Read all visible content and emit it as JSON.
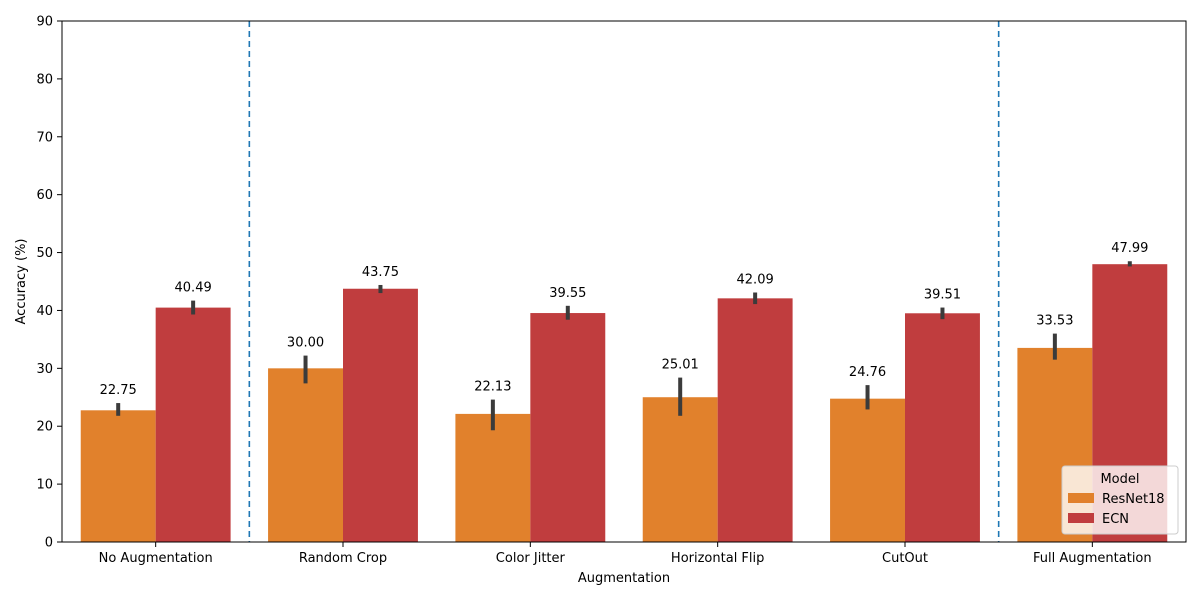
{
  "chart_data": {
    "type": "bar",
    "xlabel": "Augmentation",
    "ylabel": "Accuracy (%)",
    "ylim": [
      0,
      90
    ],
    "yticks": [
      0,
      10,
      20,
      30,
      40,
      50,
      60,
      70,
      80,
      90
    ],
    "categories": [
      "No Augmentation",
      "Random Crop",
      "Color Jitter",
      "Horizontal Flip",
      "CutOut",
      "Full Augmentation"
    ],
    "series": [
      {
        "name": "ResNet18",
        "color": "#e1812c",
        "values": [
          22.75,
          30.0,
          22.13,
          25.01,
          24.76,
          33.53
        ],
        "labels": [
          "22.75",
          "30.00",
          "22.13",
          "25.01",
          "24.76",
          "33.53"
        ],
        "error_bars": [
          [
            21.8,
            24.0
          ],
          [
            27.4,
            32.2
          ],
          [
            19.3,
            24.6
          ],
          [
            21.8,
            28.4
          ],
          [
            22.9,
            27.1
          ],
          [
            31.5,
            36.0
          ]
        ]
      },
      {
        "name": "ECN",
        "color": "#c03d3e",
        "values": [
          40.49,
          43.75,
          39.55,
          42.09,
          39.51,
          47.99
        ],
        "labels": [
          "40.49",
          "43.75",
          "39.55",
          "42.09",
          "39.51",
          "47.99"
        ],
        "error_bars": [
          [
            39.3,
            41.7
          ],
          [
            43.0,
            44.4
          ],
          [
            38.4,
            40.8
          ],
          [
            41.1,
            43.1
          ],
          [
            38.5,
            40.5
          ],
          [
            47.6,
            48.5
          ]
        ]
      }
    ],
    "error_bar_color": "#3b3b3b",
    "separator_color": "#1f77b4",
    "separators_between": [
      [
        0,
        1
      ],
      [
        4,
        5
      ]
    ],
    "legend": {
      "title": "Model",
      "placement": "bottom-right",
      "entries": [
        "ResNet18",
        "ECN"
      ]
    },
    "grid": false
  }
}
